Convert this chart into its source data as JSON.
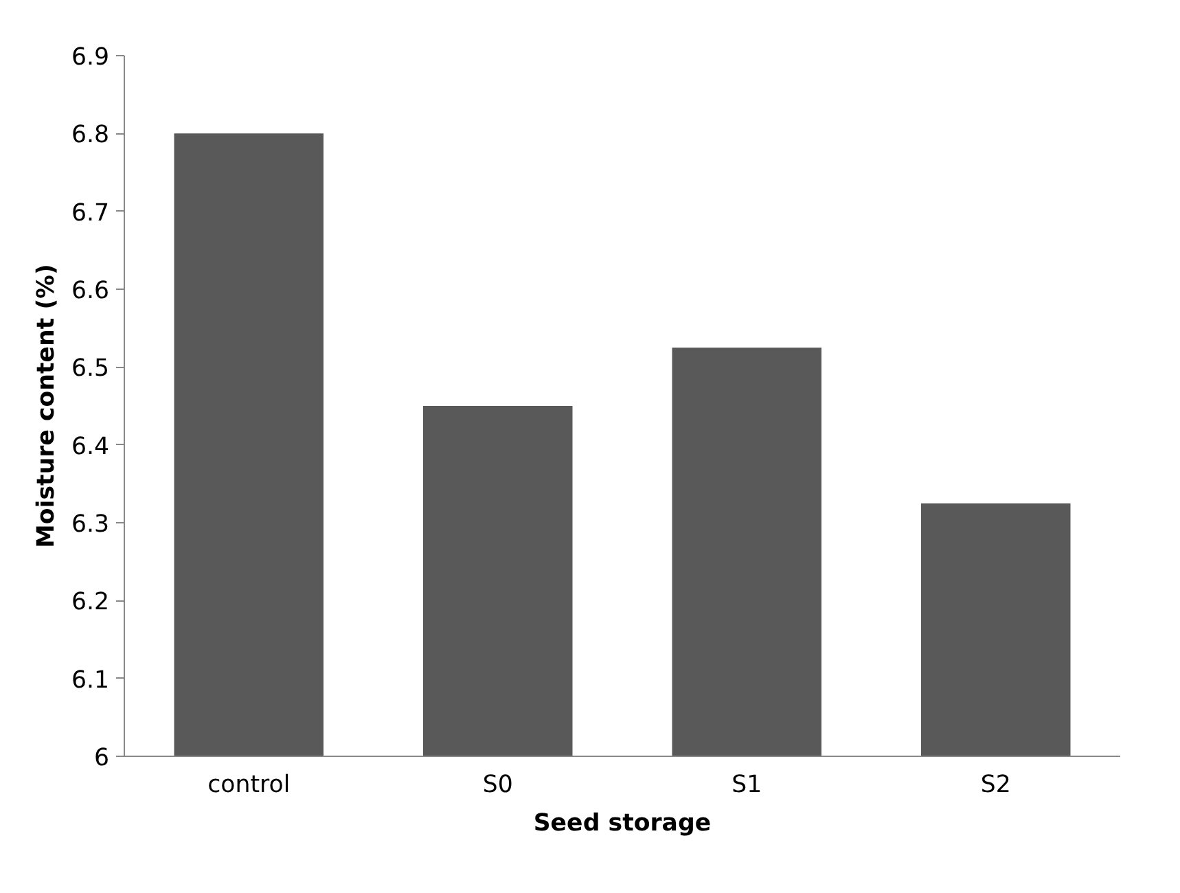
{
  "chart_data": {
    "type": "bar",
    "xlabel": "Seed storage",
    "ylabel": "Moisture content (%)",
    "categories": [
      "control",
      "S0",
      "S1",
      "S2"
    ],
    "values": [
      6.8,
      6.45,
      6.525,
      6.325
    ],
    "color": "#595959",
    "ylim": [
      6,
      6.9
    ],
    "yticks": [
      {
        "value": 6,
        "label": "6"
      },
      6.1,
      6.2,
      6.3,
      6.4,
      6.5,
      6.6,
      6.7,
      6.8,
      6.9
    ],
    "grid": false
  }
}
